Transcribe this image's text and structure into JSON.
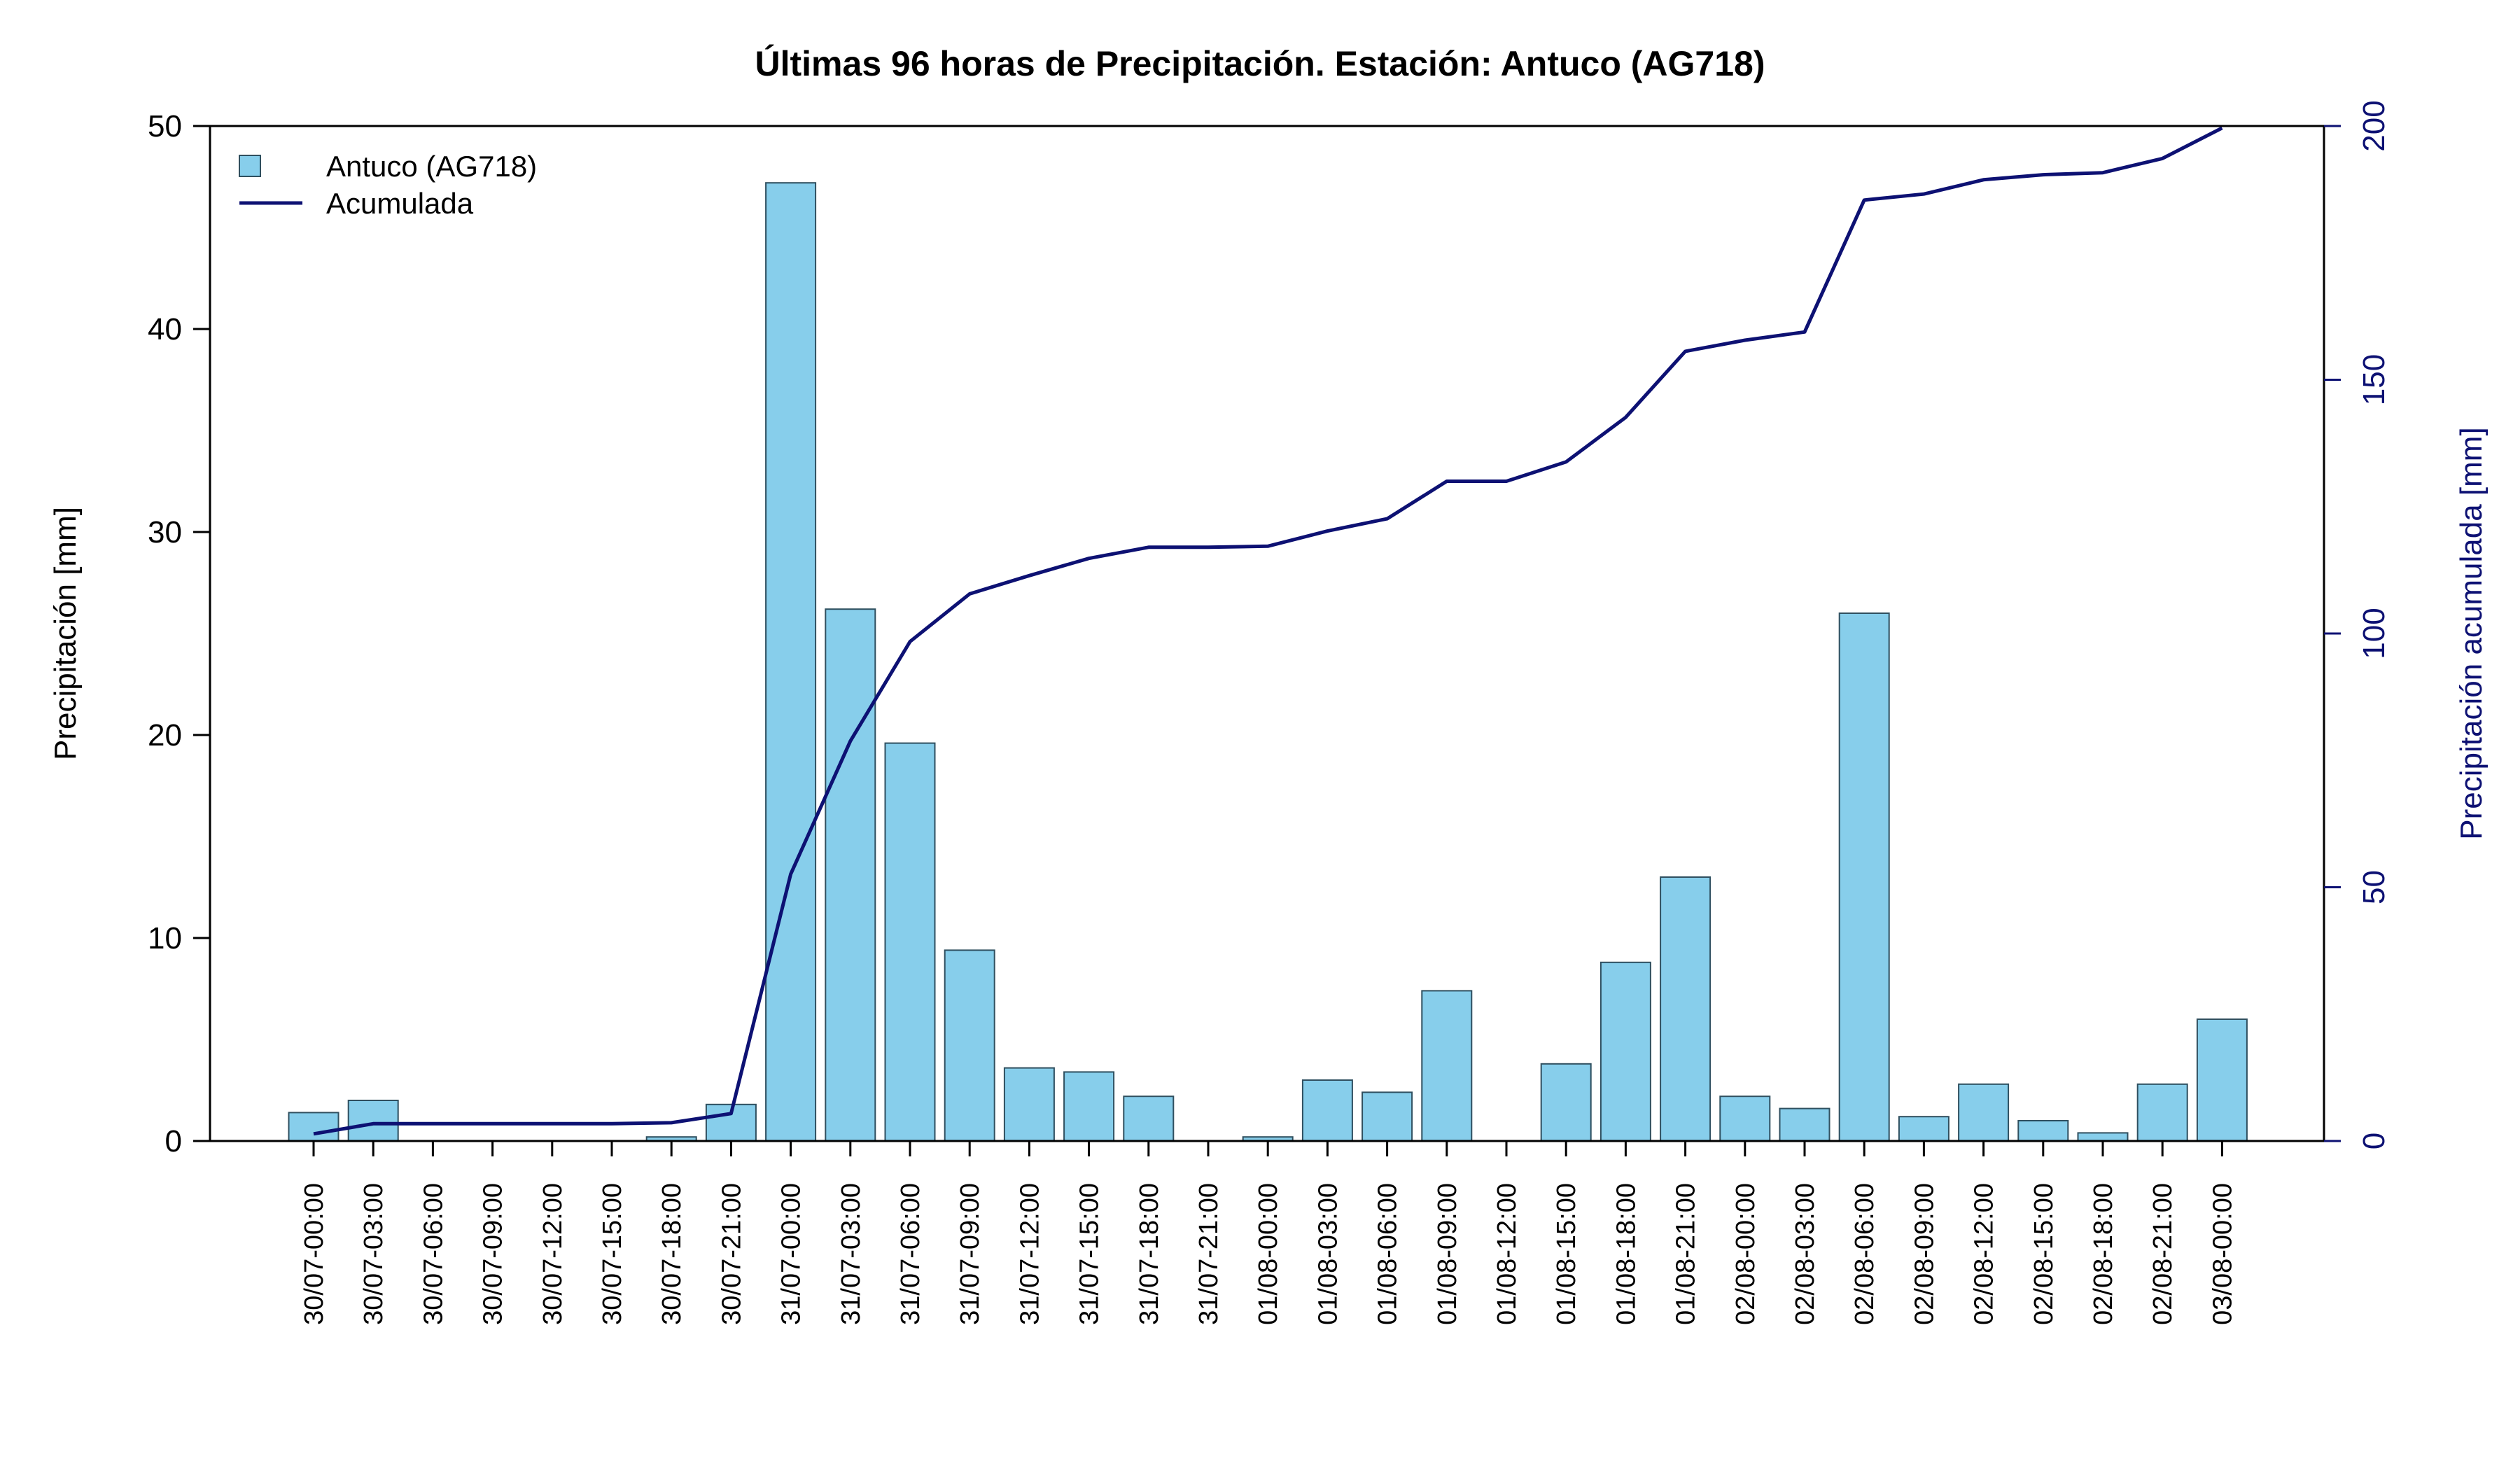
{
  "chart_data": {
    "type": "bar",
    "title": "Últimas 96 horas de Precipitación. Estación: Antuco (AG718)",
    "ylabel": "Precipitación [mm]",
    "ylabel_right": "Precipitación acumulada [mm]",
    "ylim": [
      0,
      50
    ],
    "ylim_right": [
      0,
      200
    ],
    "yticks": [
      0,
      10,
      20,
      30,
      40,
      50
    ],
    "yticks_right": [
      0,
      50,
      100,
      150,
      200
    ],
    "legend_position": "top-left",
    "categories": [
      "30/07-00:00",
      "30/07-03:00",
      "30/07-06:00",
      "30/07-09:00",
      "30/07-12:00",
      "30/07-15:00",
      "30/07-18:00",
      "30/07-21:00",
      "31/07-00:00",
      "31/07-03:00",
      "31/07-06:00",
      "31/07-09:00",
      "31/07-12:00",
      "31/07-15:00",
      "31/07-18:00",
      "31/07-21:00",
      "01/08-00:00",
      "01/08-03:00",
      "01/08-06:00",
      "01/08-09:00",
      "01/08-12:00",
      "01/08-15:00",
      "01/08-18:00",
      "01/08-21:00",
      "02/08-00:00",
      "02/08-03:00",
      "02/08-06:00",
      "02/08-09:00",
      "02/08-12:00",
      "02/08-15:00",
      "02/08-18:00",
      "02/08-21:00",
      "03/08-00:00"
    ],
    "series": [
      {
        "name": "Antuco (AG718)",
        "type": "bar",
        "axis": "left",
        "color": "#87ceeb",
        "values": [
          1.4,
          2.0,
          0,
          0,
          0,
          0,
          0.2,
          1.8,
          47.2,
          26.2,
          19.6,
          9.4,
          3.6,
          3.4,
          2.2,
          0,
          0.2,
          3.0,
          2.4,
          7.4,
          0,
          3.8,
          8.8,
          13.0,
          2.2,
          1.6,
          26.0,
          1.2,
          2.8,
          1.0,
          0.4,
          2.8,
          6.0
        ]
      },
      {
        "name": "Acumulada",
        "type": "line",
        "axis": "right",
        "color": "#0d1173",
        "values": [
          1.4,
          3.4,
          3.4,
          3.4,
          3.4,
          3.4,
          3.6,
          5.4,
          52.6,
          78.8,
          98.4,
          107.8,
          111.4,
          114.8,
          117.0,
          117.0,
          117.2,
          120.2,
          122.6,
          130.0,
          130.0,
          133.8,
          142.6,
          155.6,
          157.8,
          159.4,
          185.4,
          186.6,
          189.4,
          190.4,
          190.8,
          193.6,
          199.6
        ]
      }
    ]
  }
}
